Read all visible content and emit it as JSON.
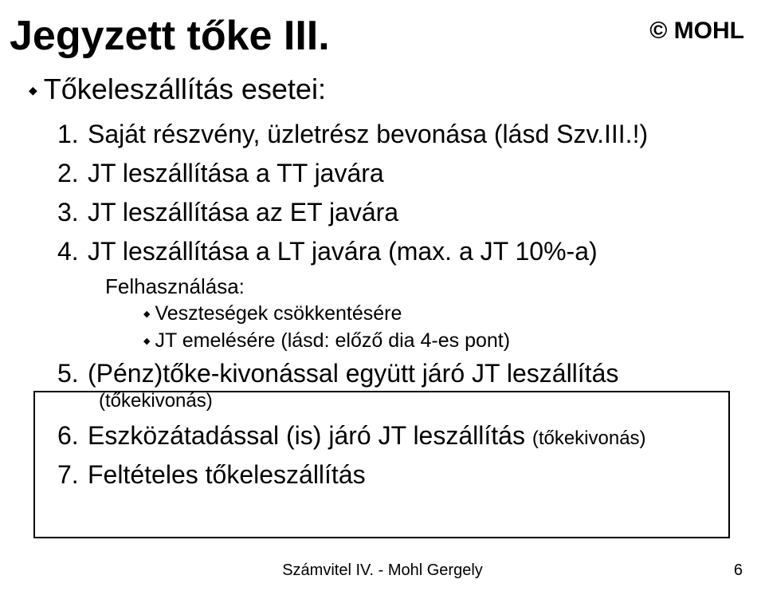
{
  "title": "Jegyzett tőke III.",
  "copyright": "© MOHL",
  "subtitle": "Tőkeleszállítás esetei:",
  "items": [
    {
      "num": "1.",
      "text": "Saját részvény, üzletrész bevonása (lásd Szv.III.!)"
    },
    {
      "num": "2.",
      "text": "JT leszállítása a TT javára"
    },
    {
      "num": "3.",
      "text": "JT leszállítása az ET javára"
    },
    {
      "num": "4.",
      "text": "JT leszállítása a LT javára (max. a JT 10%-a)"
    }
  ],
  "usage": {
    "label": "Felhasználása:",
    "points": [
      "Veszteségek csökkentésére",
      "JT emelésére (lásd: előző dia 4-es pont)"
    ]
  },
  "boxed_items": [
    {
      "num": "5.",
      "text": "(Pénz)tőke-kivonással együtt járó JT leszállítás",
      "paren": "(tőkekivonás)"
    },
    {
      "num": "6.",
      "text": "Eszközátadással (is) járó JT leszállítás",
      "trailing_small": "(tőkekivonás)"
    },
    {
      "num": "7.",
      "text": "Feltételes tőkeleszállítás"
    }
  ],
  "footer": "Számvitel IV. - Mohl Gergely",
  "page_number": "6",
  "colors": {
    "background": "#ffffff",
    "text": "#000000",
    "rect_border": "#000000"
  },
  "diamond_char": "◆"
}
